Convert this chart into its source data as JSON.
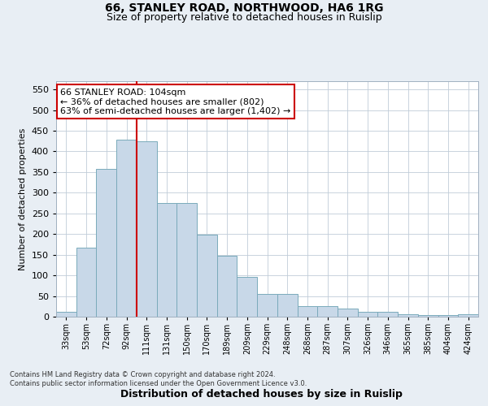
{
  "title1": "66, STANLEY ROAD, NORTHWOOD, HA6 1RG",
  "title2": "Size of property relative to detached houses in Ruislip",
  "xlabel": "Distribution of detached houses by size in Ruislip",
  "ylabel": "Number of detached properties",
  "categories": [
    "33sqm",
    "53sqm",
    "72sqm",
    "92sqm",
    "111sqm",
    "131sqm",
    "150sqm",
    "170sqm",
    "189sqm",
    "209sqm",
    "229sqm",
    "248sqm",
    "268sqm",
    "287sqm",
    "307sqm",
    "326sqm",
    "346sqm",
    "365sqm",
    "385sqm",
    "404sqm",
    "424sqm"
  ],
  "values": [
    12,
    168,
    357,
    428,
    425,
    275,
    275,
    199,
    148,
    96,
    55,
    55,
    26,
    26,
    20,
    11,
    11,
    6,
    4,
    4,
    5
  ],
  "bar_color": "#c8d8e8",
  "bar_edge_color": "#7aааbb",
  "vline_x": 3.5,
  "vline_color": "#cc0000",
  "annotation_text": "66 STANLEY ROAD: 104sqm\n← 36% of detached houses are smaller (802)\n63% of semi-detached houses are larger (1,402) →",
  "annotation_box_color": "#ffffff",
  "annotation_box_edge": "#cc0000",
  "ylim": [
    0,
    570
  ],
  "yticks": [
    0,
    50,
    100,
    150,
    200,
    250,
    300,
    350,
    400,
    450,
    500,
    550
  ],
  "footer": "Contains HM Land Registry data © Crown copyright and database right 2024.\nContains public sector information licensed under the Open Government Licence v3.0.",
  "background_color": "#e8eef4",
  "plot_bg_color": "#ffffff",
  "grid_color": "#c0ccd8"
}
